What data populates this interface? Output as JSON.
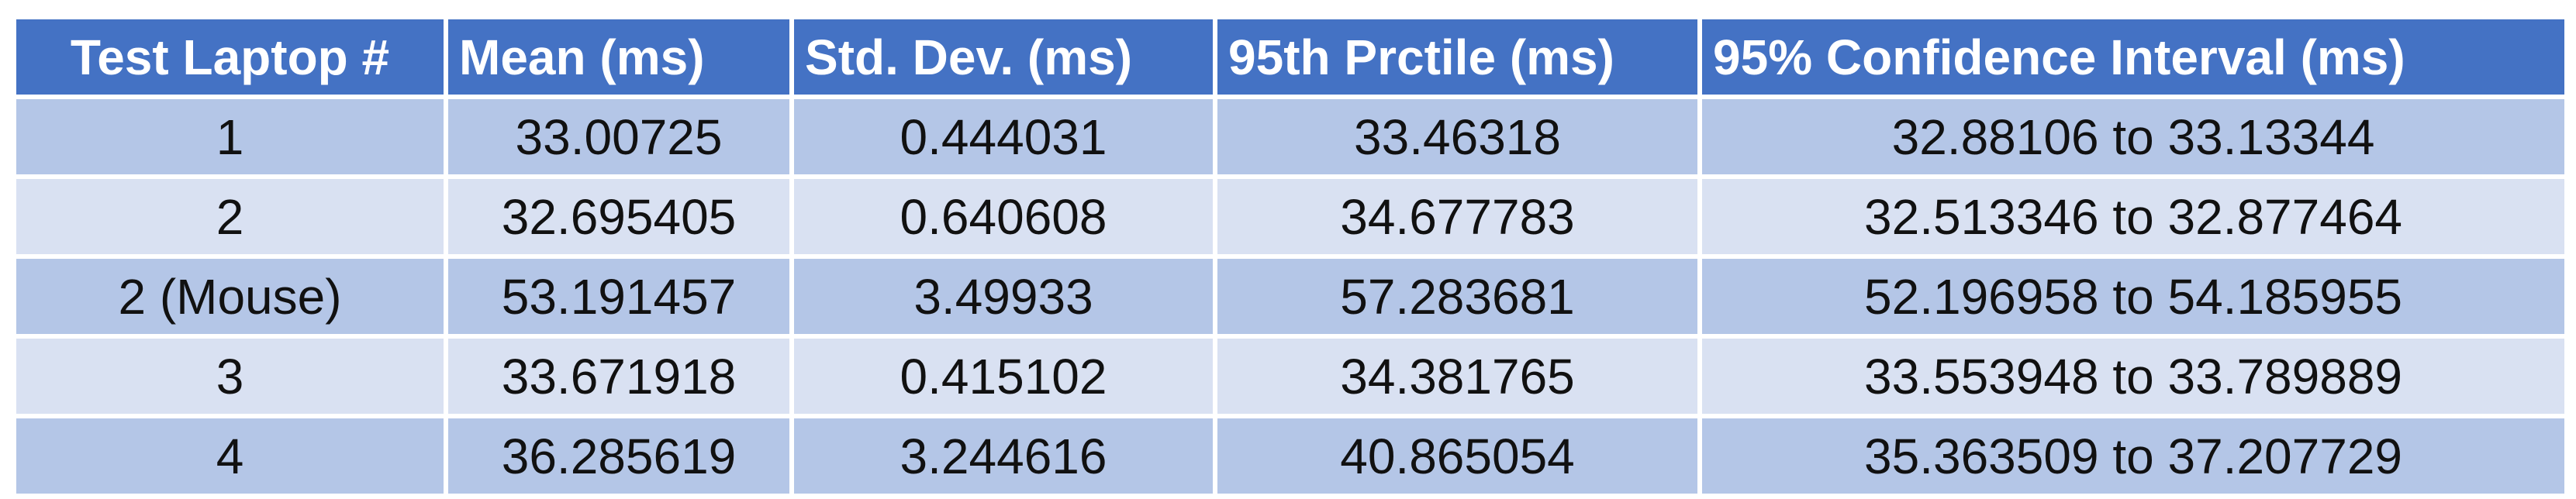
{
  "table": {
    "headers": [
      "Test Laptop #",
      "Mean (ms)",
      "Std. Dev. (ms)",
      "95th Prctile (ms)",
      "95% Confidence Interval (ms)"
    ],
    "rows": [
      {
        "laptop": "1",
        "mean": "33.00725",
        "std": "0.444031",
        "p95": "33.46318",
        "ci": "32.88106 to 33.13344"
      },
      {
        "laptop": "2",
        "mean": "32.695405",
        "std": "0.640608",
        "p95": "34.677783",
        "ci": "32.513346 to 32.877464"
      },
      {
        "laptop": "2 (Mouse)",
        "mean": "53.191457",
        "std": "3.49933",
        "p95": "57.283681",
        "ci": "52.196958 to 54.185955"
      },
      {
        "laptop": "3",
        "mean": "33.671918",
        "std": "0.415102",
        "p95": "34.381765",
        "ci": "33.553948 to 33.789889"
      },
      {
        "laptop": "4",
        "mean": "36.285619",
        "std": "3.244616",
        "p95": "40.865054",
        "ci": "35.363509 to 37.207729"
      }
    ]
  },
  "colors": {
    "header_bg": "#4472c4",
    "header_text": "#ffffff",
    "row_dark": "#b4c6e7",
    "row_light": "#d9e1f2"
  }
}
